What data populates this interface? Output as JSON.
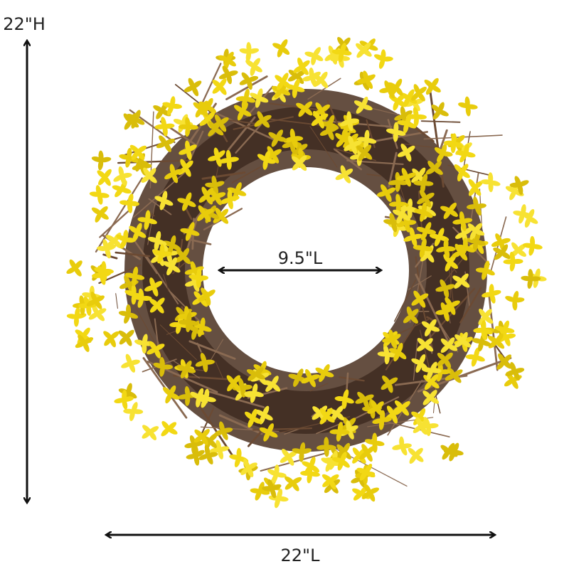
{
  "labels": {
    "height": "22\"H",
    "inner_width": "9.5\"L",
    "outer_width": "22\"L"
  }
}
